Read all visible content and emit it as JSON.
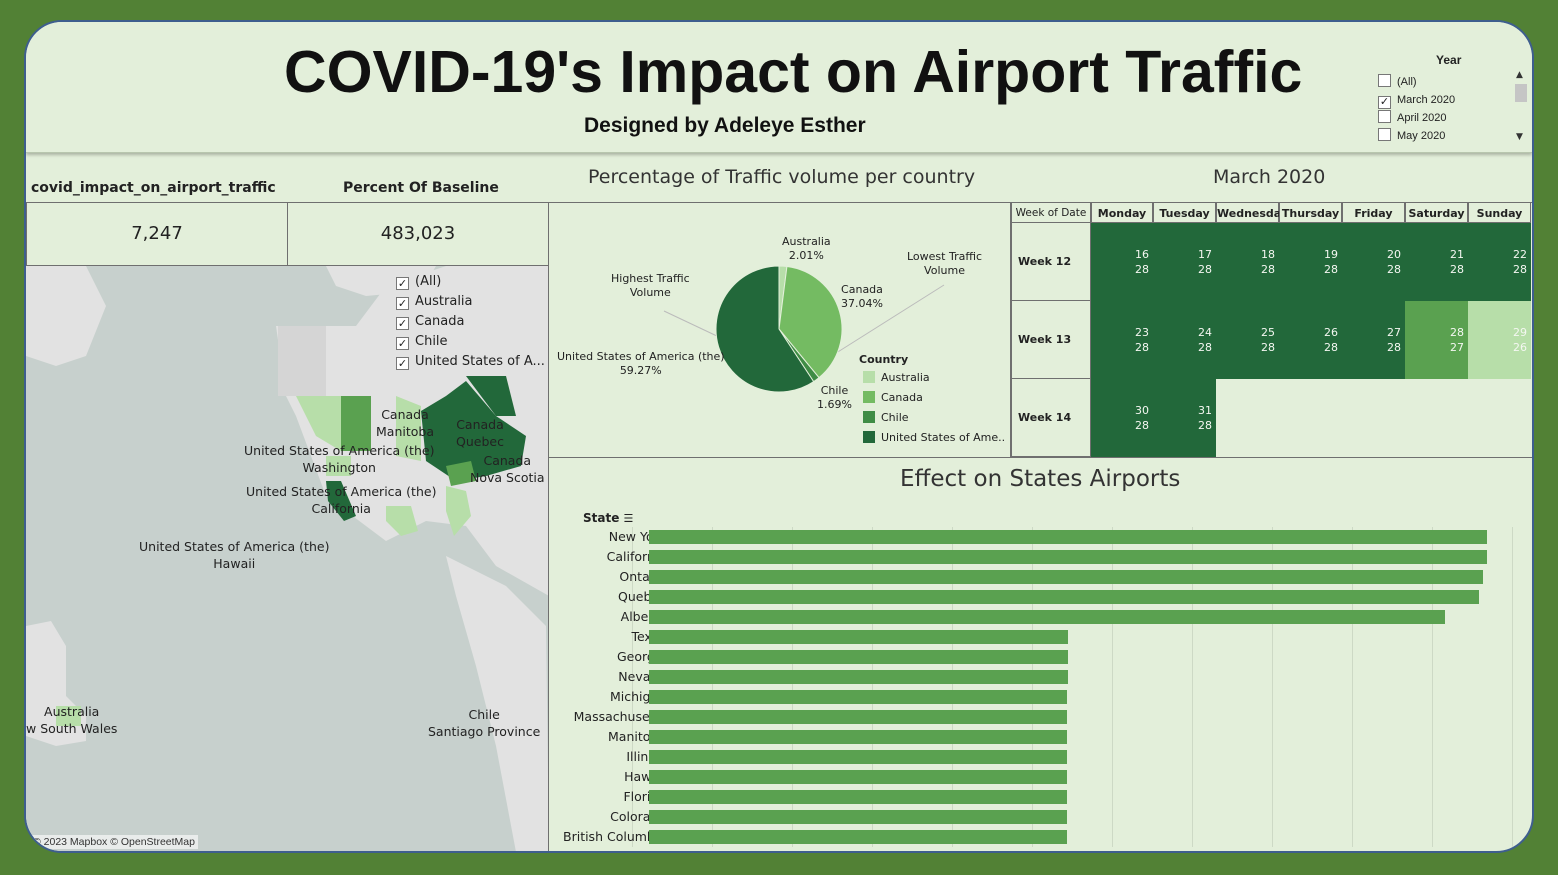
{
  "header": {
    "title": "COVID-19's Impact on Airport Traffic",
    "subtitle": "Designed by Adeleye Esther"
  },
  "year_filter": {
    "title": "Year",
    "options": [
      {
        "label": "(All)",
        "checked": false
      },
      {
        "label": "March 2020",
        "checked": true
      },
      {
        "label": "April 2020",
        "checked": false
      },
      {
        "label": "May 2020",
        "checked": false
      }
    ]
  },
  "kpis": {
    "impact_label": "covid_impact_on_airport_traffic",
    "impact_value": "7,247",
    "baseline_label": "Percent Of Baseline",
    "baseline_value": "483,023"
  },
  "map": {
    "filter_options": [
      {
        "label": "(All)",
        "checked": true
      },
      {
        "label": "Australia",
        "checked": true
      },
      {
        "label": "Canada",
        "checked": true
      },
      {
        "label": "Chile",
        "checked": true
      },
      {
        "label": "United States of A...",
        "checked": true
      }
    ],
    "labels": [
      "Canada\nManitoba",
      "Canada\nQuebec",
      "Canada\nNova Scotia",
      "United States of America (the)\nWashington",
      "United States of America (the)\nCalifornia",
      "United States of America (the)\nHawaii",
      "Australia\nw South Wales",
      "Chile\nSantiago Province"
    ],
    "attribution": "© 2023 Mapbox © OpenStreetMap"
  },
  "pie": {
    "title": "Percentage of Traffic volume per country",
    "slice_labels": [
      "Australia\n2.01%",
      "Canada\n37.04%",
      "Chile\n1.69%",
      "United States of America (the)\n59.27%"
    ],
    "annotations": [
      "Highest Traffic\nVolume",
      "Lowest Traffic\nVolume"
    ],
    "legend_title": "Country",
    "legend": [
      {
        "label": "Australia",
        "color": "#b7dea9"
      },
      {
        "label": "Canada",
        "color": "#74bb62"
      },
      {
        "label": "Chile",
        "color": "#3f8c45"
      },
      {
        "label": "United States of Ame..",
        "color": "#22683a"
      }
    ]
  },
  "calendar": {
    "title": "March 2020",
    "week_header": "Week of Date",
    "days": [
      "Monday",
      "Tuesday",
      "Wednesday",
      "Thursday",
      "Friday",
      "Saturday",
      "Sunday"
    ],
    "weeks": [
      {
        "label": "Week 12",
        "cells": [
          {
            "day": "16",
            "value": "28",
            "color": "#22683a"
          },
          {
            "day": "17",
            "value": "28",
            "color": "#22683a"
          },
          {
            "day": "18",
            "value": "28",
            "color": "#22683a"
          },
          {
            "day": "19",
            "value": "28",
            "color": "#22683a"
          },
          {
            "day": "20",
            "value": "28",
            "color": "#22683a"
          },
          {
            "day": "21",
            "value": "28",
            "color": "#22683a"
          },
          {
            "day": "22",
            "value": "28",
            "color": "#22683a"
          }
        ]
      },
      {
        "label": "Week 13",
        "cells": [
          {
            "day": "23",
            "value": "28",
            "color": "#22683a"
          },
          {
            "day": "24",
            "value": "28",
            "color": "#22683a"
          },
          {
            "day": "25",
            "value": "28",
            "color": "#22683a"
          },
          {
            "day": "26",
            "value": "28",
            "color": "#22683a"
          },
          {
            "day": "27",
            "value": "28",
            "color": "#22683a"
          },
          {
            "day": "28",
            "value": "27",
            "color": "#5aa150"
          },
          {
            "day": "29",
            "value": "26",
            "color": "#b7dea9"
          }
        ]
      },
      {
        "label": "Week 14",
        "cells": [
          {
            "day": "30",
            "value": "28",
            "color": "#22683a"
          },
          {
            "day": "31",
            "value": "28",
            "color": "#22683a"
          }
        ]
      }
    ]
  },
  "chart_data": {
    "type": "bar",
    "title": "Effect on States Airports",
    "ylabel": "State",
    "bar_color": "#5aa150",
    "categories": [
      "New York",
      "California",
      "Ontario",
      "Quebec",
      "Alberta",
      "Texas",
      "Georgia",
      "Nevada",
      "Michigan",
      "Massachusetts",
      "Manitoba",
      "Illinois",
      "Hawaii",
      "Florida",
      "Colorado",
      "British Columbia"
    ],
    "values": [
      1,
      1,
      0.995,
      0.991,
      0.95,
      0.5,
      0.5,
      0.5,
      0.499,
      0.499,
      0.499,
      0.499,
      0.499,
      0.499,
      0.499,
      0.499
    ]
  }
}
